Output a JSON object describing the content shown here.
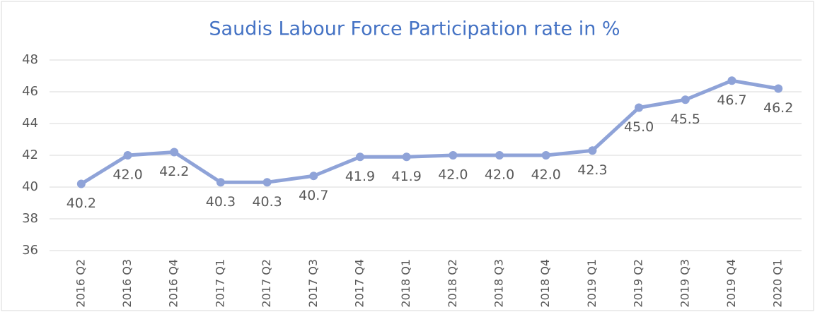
{
  "chart_data": {
    "type": "line",
    "title": "Saudis Labour Force Participation rate in %",
    "categories": [
      "2016 Q2",
      "2016 Q3",
      "2016 Q4",
      "2017 Q1",
      "2017 Q2",
      "2017 Q3",
      "2017 Q4",
      "2018 Q1",
      "2018 Q2",
      "2018 Q3",
      "2018 Q4",
      "2019 Q1",
      "2019 Q2",
      "2019 Q3",
      "2019 Q4",
      "2020 Q1"
    ],
    "series": [
      {
        "name": "Participation rate",
        "color": "#8fa3d8",
        "values": [
          40.2,
          42.0,
          42.2,
          40.3,
          40.3,
          40.7,
          41.9,
          41.9,
          42.0,
          42.0,
          42.0,
          42.3,
          45.0,
          45.5,
          46.7,
          46.2
        ],
        "value_labels": [
          "40.2",
          "42.0",
          "42.2",
          "40.3",
          "40.3",
          "40.7",
          "41.9",
          "41.9",
          "42.0",
          "42.0",
          "42.0",
          "42.3",
          "45.0",
          "45.5",
          "46.7",
          "46.2"
        ]
      }
    ],
    "ylim": [
      36,
      48
    ],
    "yticks": [
      36,
      38,
      40,
      42,
      44,
      46,
      48
    ],
    "grid": true
  }
}
